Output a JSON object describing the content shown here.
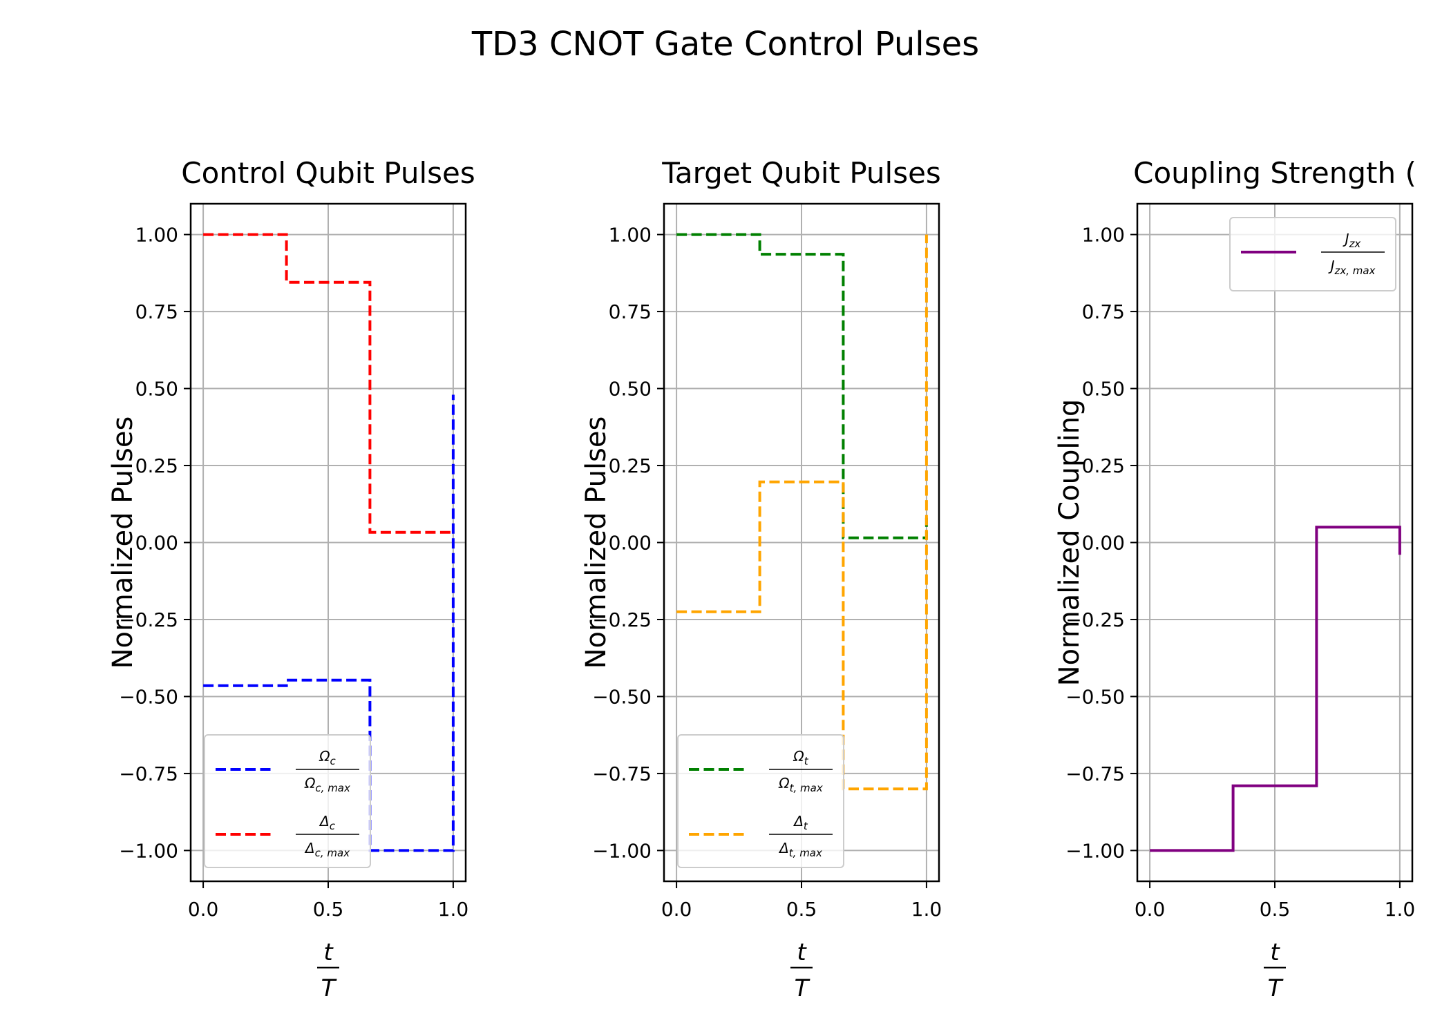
{
  "chart_data": {
    "suptitle": "TD3 CNOT Gate Control Pulses",
    "panels": [
      {
        "type": "line",
        "title": "Control Qubit Pulses",
        "xlabel": "t/T",
        "ylabel": "Normalized Pulses",
        "xlim": [
          -0.05,
          1.05
        ],
        "ylim": [
          -1.1,
          1.1
        ],
        "xticks": [
          0.0,
          0.5,
          1.0
        ],
        "xtick_labels": [
          "0.0",
          "0.5",
          "1.0"
        ],
        "yticks": [
          1.0,
          0.75,
          0.5,
          0.25,
          0.0,
          -0.25,
          -0.5,
          -0.75,
          -1.0
        ],
        "ytick_labels": [
          "1.00",
          "0.75",
          "0.50",
          "0.25",
          "0.00",
          "−0.25",
          "−0.50",
          "−0.75",
          "−1.00"
        ],
        "grid": true,
        "legend_position": "lower-left",
        "series": [
          {
            "name": "Ωc / Ωc,max",
            "color": "#0000ff",
            "style": "dashed",
            "x": [
              0,
              0.333,
              0.333,
              0.667,
              0.667,
              1.0,
              1.0
            ],
            "y": [
              -0.465,
              -0.465,
              -0.447,
              -0.447,
              -1.0,
              -1.0,
              0.48
            ]
          },
          {
            "name": "Δc / Δc,max",
            "color": "#ff0000",
            "style": "dashed",
            "x": [
              0,
              0.333,
              0.333,
              0.667,
              0.667,
              1.0,
              1.0
            ],
            "y": [
              1.0,
              1.0,
              0.845,
              0.845,
              0.033,
              0.033,
              0.033
            ]
          }
        ]
      },
      {
        "type": "line",
        "title": "Target Qubit Pulses",
        "xlabel": "t/T",
        "ylabel": "Normalized Pulses",
        "xlim": [
          -0.05,
          1.05
        ],
        "ylim": [
          -1.1,
          1.1
        ],
        "xticks": [
          0.0,
          0.5,
          1.0
        ],
        "xtick_labels": [
          "0.0",
          "0.5",
          "1.0"
        ],
        "yticks": [
          1.0,
          0.75,
          0.5,
          0.25,
          0.0,
          -0.25,
          -0.5,
          -0.75,
          -1.0
        ],
        "ytick_labels": [
          "1.00",
          "0.75",
          "0.50",
          "0.25",
          "0.00",
          "−0.25",
          "−0.50",
          "−0.75",
          "−1.00"
        ],
        "grid": true,
        "legend_position": "lower-left",
        "series": [
          {
            "name": "Ωt / Ωt,max",
            "color": "#008000",
            "style": "dashed",
            "x": [
              0,
              0.333,
              0.333,
              0.667,
              0.667,
              1.0,
              1.0
            ],
            "y": [
              1.0,
              1.0,
              0.936,
              0.936,
              0.015,
              0.015,
              0.08
            ]
          },
          {
            "name": "Δt / Δt,max",
            "color": "#ffa500",
            "style": "dashed",
            "x": [
              0,
              0.333,
              0.333,
              0.667,
              0.667,
              1.0,
              1.0
            ],
            "y": [
              -0.225,
              -0.225,
              0.197,
              0.197,
              -0.8,
              -0.8,
              1.0
            ]
          }
        ]
      },
      {
        "type": "line",
        "title": "Coupling Strength (",
        "xlabel": "t/T",
        "ylabel": "Normalized Coupling",
        "xlim": [
          -0.05,
          1.05
        ],
        "ylim": [
          -1.1,
          1.1
        ],
        "xticks": [
          0.0,
          0.5,
          1.0
        ],
        "xtick_labels": [
          "0.0",
          "0.5",
          "1.0"
        ],
        "yticks": [
          1.0,
          0.75,
          0.5,
          0.25,
          0.0,
          -0.25,
          -0.5,
          -0.75,
          -1.0
        ],
        "ytick_labels": [
          "1.00",
          "0.75",
          "0.50",
          "0.25",
          "0.00",
          "−0.25",
          "−0.50",
          "−0.75",
          "−1.00"
        ],
        "grid": true,
        "legend_position": "upper-right",
        "series": [
          {
            "name": "Jzx / Jzx,max",
            "color": "#800080",
            "style": "solid",
            "x": [
              0,
              0.333,
              0.333,
              0.667,
              0.667,
              1.0,
              1.0
            ],
            "y": [
              -1.0,
              -1.0,
              -0.79,
              -0.79,
              0.05,
              0.05,
              -0.04
            ]
          }
        ]
      }
    ]
  },
  "legend_math": [
    [
      {
        "num": "Ω",
        "num_sub": "c",
        "den": "Ω",
        "den_sub": "c, max"
      },
      {
        "num": "Δ",
        "num_sub": "c",
        "den": "Δ",
        "den_sub": "c, max"
      }
    ],
    [
      {
        "num": "Ω",
        "num_sub": "t",
        "den": "Ω",
        "den_sub": "t, max"
      },
      {
        "num": "Δ",
        "num_sub": "t",
        "den": "Δ",
        "den_sub": "t, max"
      }
    ],
    [
      {
        "num": "J",
        "num_sub": "zx",
        "den": "J",
        "den_sub": "zx, max"
      }
    ]
  ],
  "xlabel_math": {
    "num": "t",
    "den": "T"
  }
}
